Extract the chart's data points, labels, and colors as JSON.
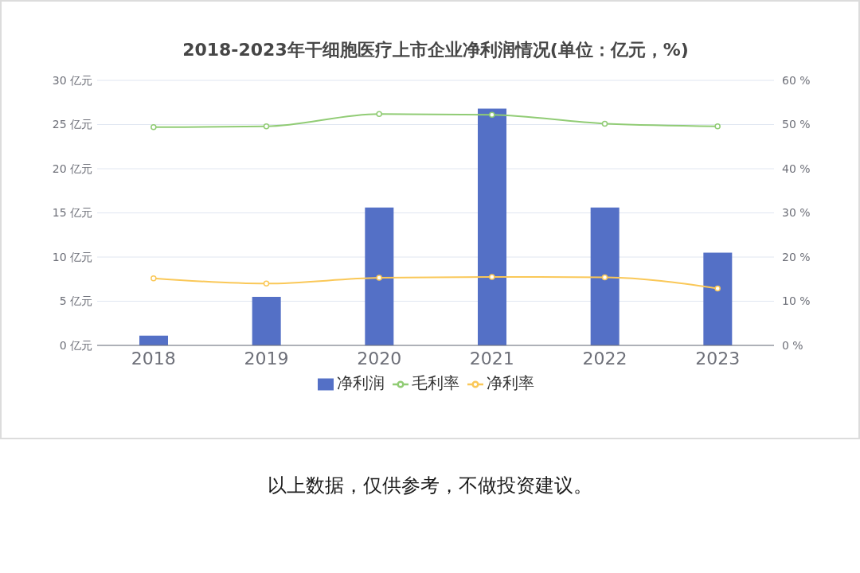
{
  "chart_data": {
    "type": "bar",
    "title": "2018-2023年干细胞医疗上市企业净利润情况(单位：亿元，%)",
    "categories": [
      "2018",
      "2019",
      "2020",
      "2021",
      "2022",
      "2023"
    ],
    "series": [
      {
        "name": "净利润",
        "color": "#5470c6",
        "values": [
          1.1,
          5.5,
          15.6,
          26.8,
          15.6,
          10.5
        ]
      },
      {
        "name": "毛利率",
        "type": "line",
        "axis": "y2",
        "color": "#91cc75",
        "values": [
          49.4,
          49.6,
          52.4,
          52.2,
          50.2,
          49.6
        ]
      },
      {
        "name": "净利率",
        "type": "line",
        "axis": "y2",
        "color": "#fac858",
        "values": [
          15.2,
          14.0,
          15.3,
          15.5,
          15.4,
          12.9
        ]
      }
    ],
    "ylim": [
      0,
      30
    ],
    "yticks": [
      {
        "value": 0,
        "label": "0 亿元"
      },
      {
        "value": 5,
        "label": "5 亿元"
      },
      {
        "value": 10,
        "label": "10 亿元"
      },
      {
        "value": 15,
        "label": "15 亿元"
      },
      {
        "value": 20,
        "label": "20 亿元"
      },
      {
        "value": 25,
        "label": "25 亿元"
      },
      {
        "value": 30,
        "label": "30 亿元"
      }
    ],
    "y2lim": [
      0,
      60
    ],
    "y2ticks": [
      {
        "value": 0,
        "label": "0 %"
      },
      {
        "value": 10,
        "label": "10 %"
      },
      {
        "value": 20,
        "label": "20 %"
      },
      {
        "value": 30,
        "label": "30 %"
      },
      {
        "value": 40,
        "label": "40 %"
      },
      {
        "value": 50,
        "label": "50 %"
      },
      {
        "value": 60,
        "label": "60 %"
      }
    ],
    "grid": "y",
    "legend": "bottom",
    "marker": "circle",
    "line_style": "solid",
    "annotations": [
      "以上数据，仅供参考，不做投资建议。"
    ]
  }
}
